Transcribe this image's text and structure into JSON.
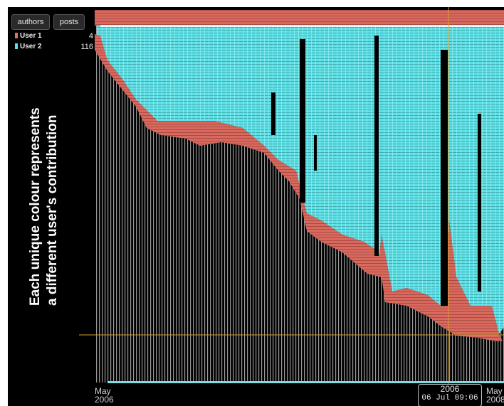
{
  "toolbar": {
    "authors_label": "authors",
    "posts_label": "posts"
  },
  "legend": [
    {
      "label": "User 1",
      "count": "4",
      "color": "#e07166"
    },
    {
      "label": "User 2",
      "count": "116",
      "color": "#5ee1e6"
    }
  ],
  "caption": {
    "line1": "Each unique colour represents",
    "line2": "a different user's contribution"
  },
  "axis": {
    "start_month": "May",
    "start_year": "2006",
    "end_month": "May",
    "end_year": "2008"
  },
  "cursor": {
    "year": "2006",
    "timestamp": "06 Jul 09:06"
  },
  "colors": {
    "user1": "#e07166",
    "user2": "#5ee1e6",
    "background": "#000000",
    "crosshair": "#d89a2a"
  }
}
